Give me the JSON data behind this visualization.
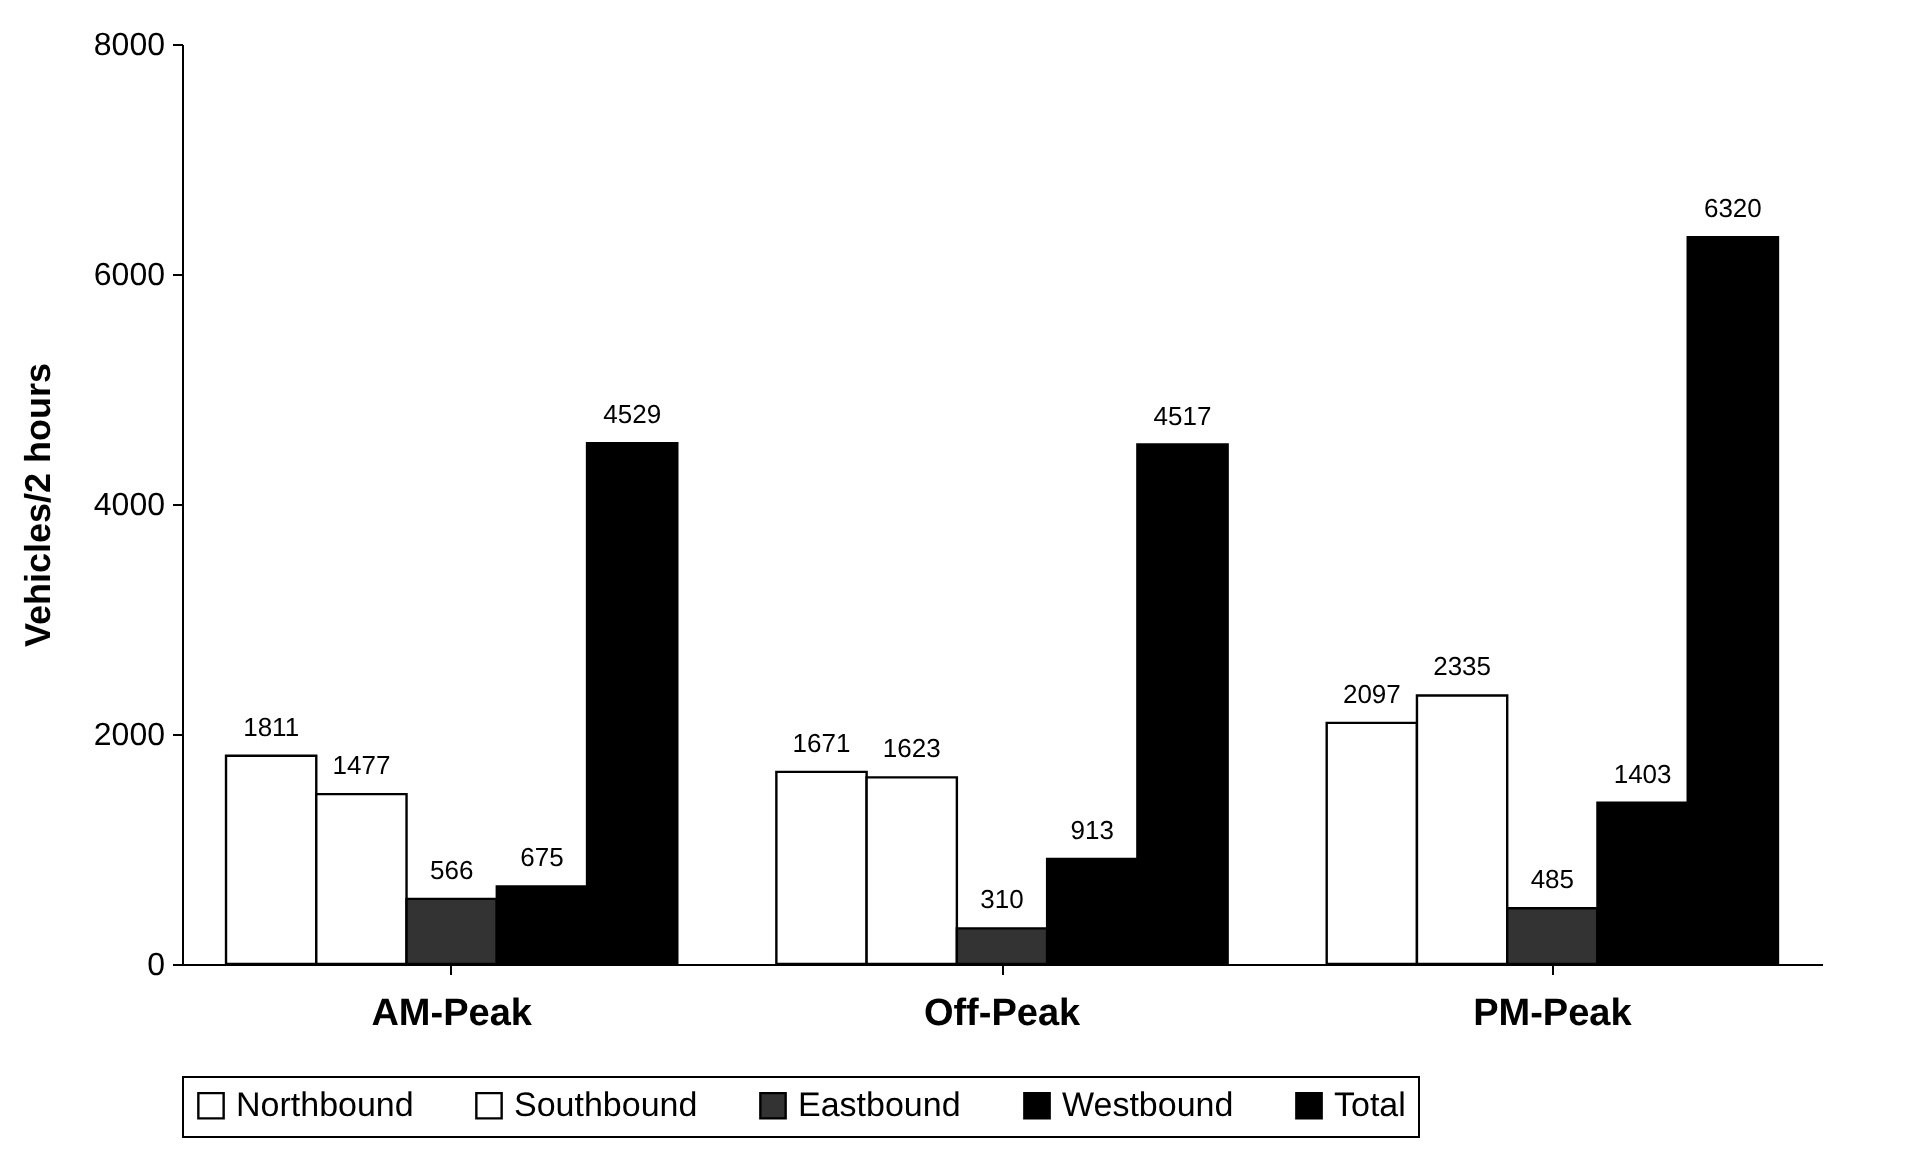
{
  "chart_data": {
    "type": "bar",
    "ylabel": "Vehicles/2 hours",
    "categories": [
      "AM-Peak",
      "Off-Peak",
      "PM-Peak"
    ],
    "series": [
      {
        "name": "Northbound",
        "color": "#ffffff",
        "values": [
          1811,
          1671,
          2097
        ]
      },
      {
        "name": "Southbound",
        "color": "#ffffff",
        "values": [
          1477,
          1623,
          2335
        ]
      },
      {
        "name": "Eastbound",
        "color": "#333333",
        "values": [
          566,
          310,
          485
        ]
      },
      {
        "name": "Westbound",
        "color": "#000000",
        "values": [
          675,
          913,
          1403
        ]
      },
      {
        "name": "Total",
        "color": "#000000",
        "values": [
          4529,
          4517,
          6320
        ]
      }
    ],
    "ylim": [
      0,
      8000
    ],
    "yticks": [
      0,
      2000,
      4000,
      6000,
      8000
    ],
    "data_labels": true,
    "grid": false,
    "legend": "bottom"
  }
}
